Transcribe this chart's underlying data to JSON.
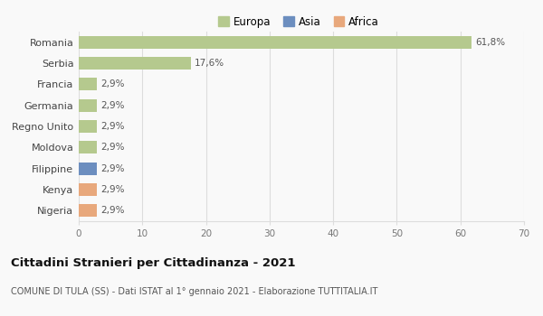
{
  "categories": [
    "Romania",
    "Serbia",
    "Francia",
    "Germania",
    "Regno Unito",
    "Moldova",
    "Filippine",
    "Kenya",
    "Nigeria"
  ],
  "values": [
    61.8,
    17.6,
    2.9,
    2.9,
    2.9,
    2.9,
    2.9,
    2.9,
    2.9
  ],
  "colors": [
    "#b5c98e",
    "#b5c98e",
    "#b5c98e",
    "#b5c98e",
    "#b5c98e",
    "#b5c98e",
    "#6c8ebf",
    "#e8a87c",
    "#e8a87c"
  ],
  "labels": [
    "61,8%",
    "17,6%",
    "2,9%",
    "2,9%",
    "2,9%",
    "2,9%",
    "2,9%",
    "2,9%",
    "2,9%"
  ],
  "legend": [
    {
      "label": "Europa",
      "color": "#b5c98e"
    },
    {
      "label": "Asia",
      "color": "#6c8ebf"
    },
    {
      "label": "Africa",
      "color": "#e8a87c"
    }
  ],
  "xlim": [
    0,
    70
  ],
  "xticks": [
    0,
    10,
    20,
    30,
    40,
    50,
    60,
    70
  ],
  "title": "Cittadini Stranieri per Cittadinanza - 2021",
  "subtitle": "COMUNE DI TULA (SS) - Dati ISTAT al 1° gennaio 2021 - Elaborazione TUTTITALIA.IT",
  "background_color": "#f9f9f9",
  "grid_color": "#dddddd",
  "bar_height": 0.6
}
